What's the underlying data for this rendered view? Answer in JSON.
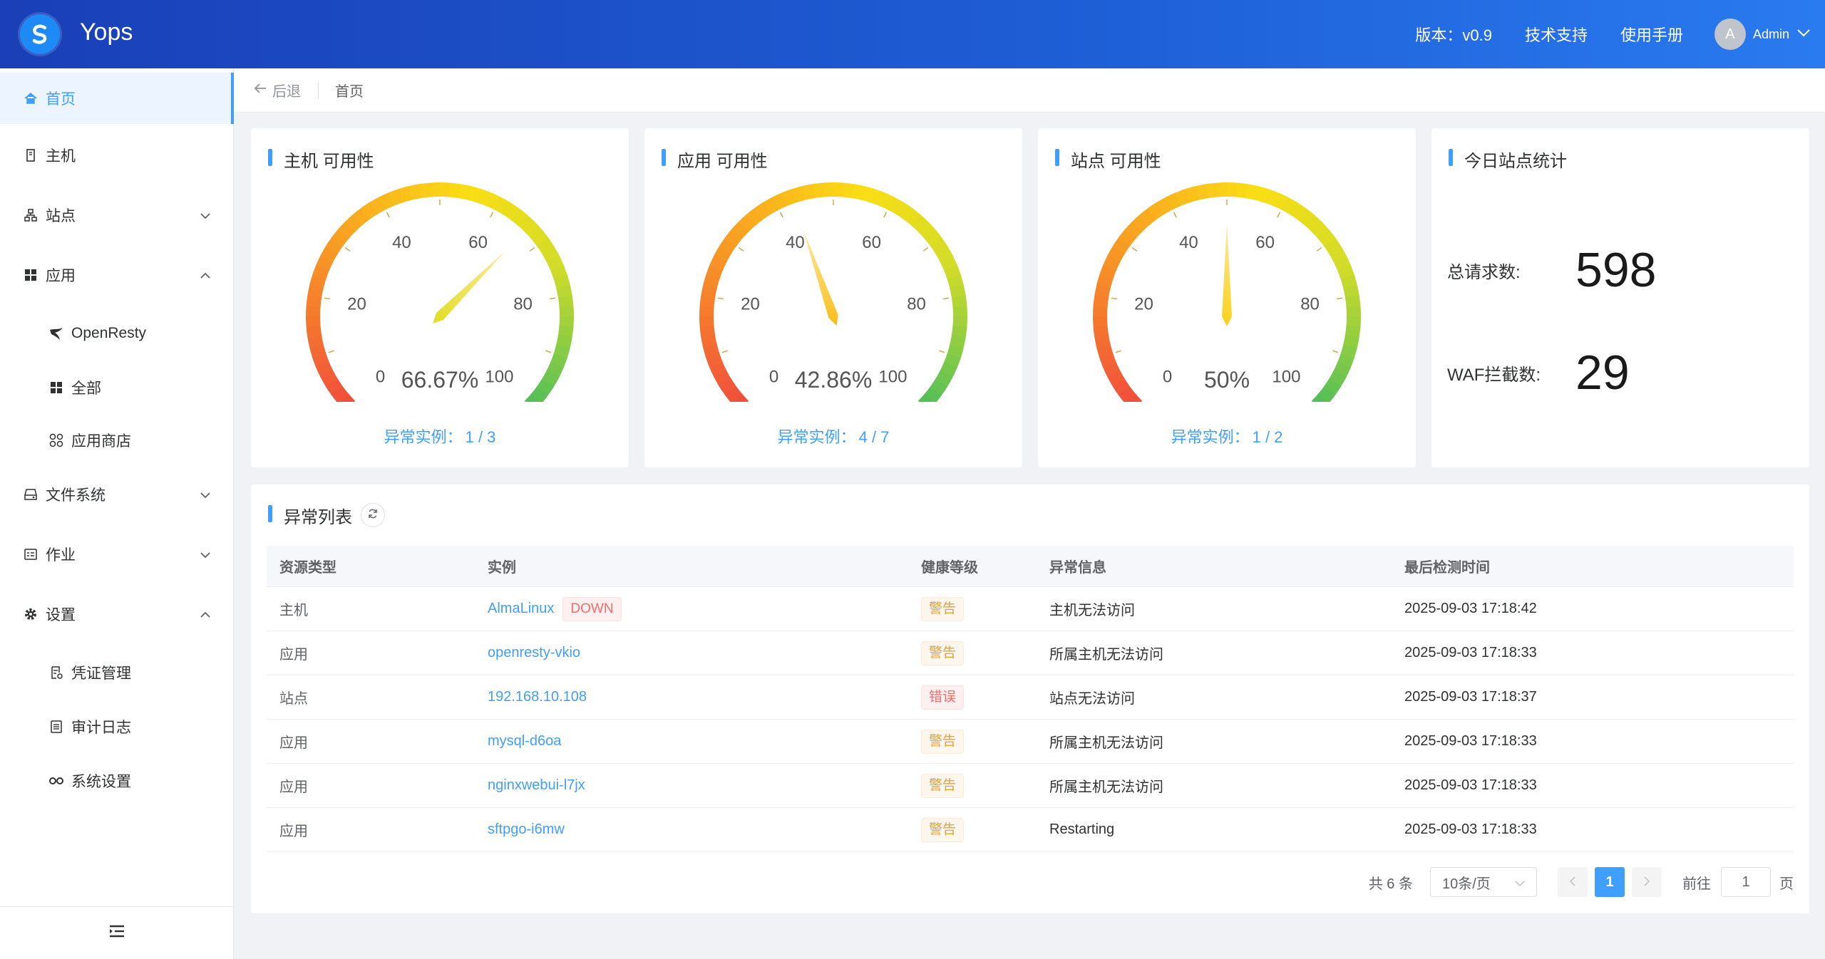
{
  "header": {
    "brand": "Yops",
    "version": "版本：v0.9",
    "support": "技术支持",
    "manual": "使用手册",
    "avatar_letter": "A",
    "user": "Admin"
  },
  "sidebar": {
    "items": [
      {
        "label": "首页",
        "icon": "home-icon"
      },
      {
        "label": "主机",
        "icon": "server-icon"
      },
      {
        "label": "站点",
        "icon": "sitemap-icon"
      },
      {
        "label": "应用",
        "icon": "grid-icon"
      },
      {
        "label": "OpenResty",
        "icon": "openresty-icon"
      },
      {
        "label": "全部",
        "icon": "grid-icon"
      },
      {
        "label": "应用商店",
        "icon": "apps-icon"
      },
      {
        "label": "文件系统",
        "icon": "drive-icon"
      },
      {
        "label": "作业",
        "icon": "job-icon"
      },
      {
        "label": "设置",
        "icon": "gear-icon"
      },
      {
        "label": "凭证管理",
        "icon": "credential-icon"
      },
      {
        "label": "审计日志",
        "icon": "log-icon"
      },
      {
        "label": "系统设置",
        "icon": "link-icon"
      }
    ]
  },
  "breadcrumb": {
    "back": "后退",
    "current": "首页"
  },
  "gauges": [
    {
      "title": "主机 可用性",
      "value": 66.67,
      "label": "66.67%",
      "abnormal_label": "异常实例：",
      "abnormal": "1 / 3"
    },
    {
      "title": "应用 可用性",
      "value": 42.86,
      "label": "42.86%",
      "abnormal_label": "异常实例：",
      "abnormal": "4 / 7"
    },
    {
      "title": "站点 可用性",
      "value": 50,
      "label": "50%",
      "abnormal_label": "异常实例：",
      "abnormal": "1 / 2"
    }
  ],
  "gauge_ticks": [
    "0",
    "20",
    "40",
    "60",
    "80",
    "100"
  ],
  "stats": {
    "title": "今日站点统计",
    "requests_label": "总请求数:",
    "requests": "598",
    "waf_label": "WAF拦截数:",
    "waf": "29"
  },
  "table": {
    "title": "异常列表",
    "headers": [
      "资源类型",
      "实例",
      "健康等级",
      "异常信息",
      "最后检测时间"
    ],
    "rows": [
      {
        "type": "主机",
        "instance": "AlmaLinux",
        "badge": "DOWN",
        "level": "警告",
        "level_kind": "warn",
        "info": "主机无法访问",
        "time": "2025-09-03 17:18:42"
      },
      {
        "type": "应用",
        "instance": "openresty-vkio",
        "badge": "",
        "level": "警告",
        "level_kind": "warn",
        "info": "所属主机无法访问",
        "time": "2025-09-03 17:18:33"
      },
      {
        "type": "站点",
        "instance": "192.168.10.108",
        "badge": "",
        "level": "错误",
        "level_kind": "err",
        "info": "站点无法访问",
        "time": "2025-09-03 17:18:37"
      },
      {
        "type": "应用",
        "instance": "mysql-d6oa",
        "badge": "",
        "level": "警告",
        "level_kind": "warn",
        "info": "所属主机无法访问",
        "time": "2025-09-03 17:18:33"
      },
      {
        "type": "应用",
        "instance": "nginxwebui-l7jx",
        "badge": "",
        "level": "警告",
        "level_kind": "warn",
        "info": "所属主机无法访问",
        "time": "2025-09-03 17:18:33"
      },
      {
        "type": "应用",
        "instance": "sftpgo-i6mw",
        "badge": "",
        "level": "警告",
        "level_kind": "warn",
        "info": "Restarting",
        "time": "2025-09-03 17:18:33"
      }
    ]
  },
  "pager": {
    "total": "共 6 条",
    "page_size": "10条/页",
    "current": "1",
    "goto_label": "前往",
    "goto_value": "1",
    "page_suffix": "页"
  }
}
